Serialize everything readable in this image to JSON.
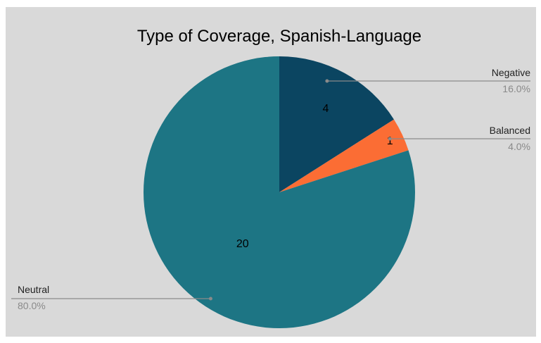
{
  "chart_data": {
    "type": "pie",
    "title": "Type of Coverage, Spanish-Language",
    "slices": [
      {
        "label": "Negative",
        "value": 4,
        "percent_label": "16.0%",
        "value_label": "4",
        "color": "#0b4561"
      },
      {
        "label": "Balanced",
        "value": 1,
        "percent_label": "4.0%",
        "value_label": "1",
        "color": "#fb6d34"
      },
      {
        "label": "Neutral",
        "value": 20,
        "percent_label": "80.0%",
        "value_label": "20",
        "color": "#1d7584"
      }
    ],
    "background": "#d9d9d9"
  }
}
